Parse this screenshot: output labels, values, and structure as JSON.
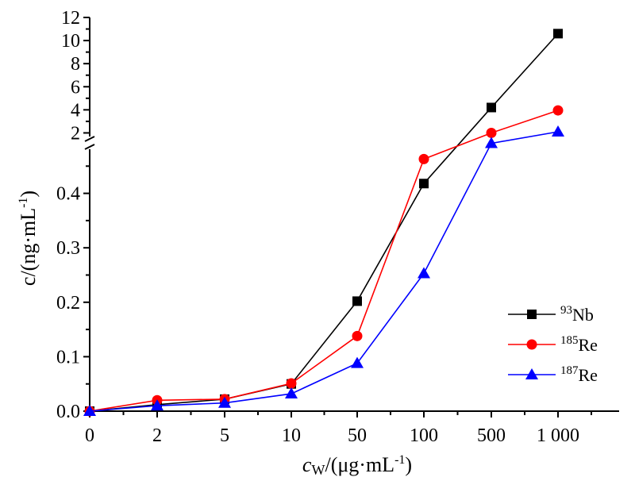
{
  "chart_data": {
    "type": "line",
    "title": "",
    "categories": [
      "0",
      "2",
      "5",
      "10",
      "50",
      "100",
      "500",
      "1 000"
    ],
    "xlabel": {
      "main": "c",
      "sub": "W",
      "rest": "/(μg·mL",
      "sup": "-1",
      "close": ")"
    },
    "ylabel": {
      "main": "c/(ng·mL",
      "sup": "-1",
      "close": ")"
    },
    "y_axis_break": true,
    "y_lower": {
      "range": [
        0,
        0.5
      ],
      "ticks": [
        "0.0",
        "0.1",
        "0.2",
        "0.3",
        "0.4"
      ]
    },
    "y_upper": {
      "range": [
        1,
        12
      ],
      "ticks": [
        "2",
        "4",
        "6",
        "8",
        "10",
        "12"
      ]
    },
    "legend_position": "lower-right",
    "series": [
      {
        "name_sup": "93",
        "name": "Nb",
        "color": "#000000",
        "marker": "square",
        "values": [
          0,
          0.012,
          0.022,
          0.05,
          0.202,
          0.418,
          4.2,
          10.6
        ]
      },
      {
        "name_sup": "185",
        "name": "Re",
        "color": "#ff0000",
        "marker": "circle",
        "values": [
          0,
          0.02,
          0.022,
          0.051,
          0.138,
          0.463,
          2.0,
          3.95
        ]
      },
      {
        "name_sup": "187",
        "name": "Re",
        "color": "#0000ff",
        "marker": "triangle",
        "values": [
          0,
          0.01,
          0.015,
          0.032,
          0.088,
          0.253,
          1.1,
          2.1
        ]
      }
    ]
  }
}
